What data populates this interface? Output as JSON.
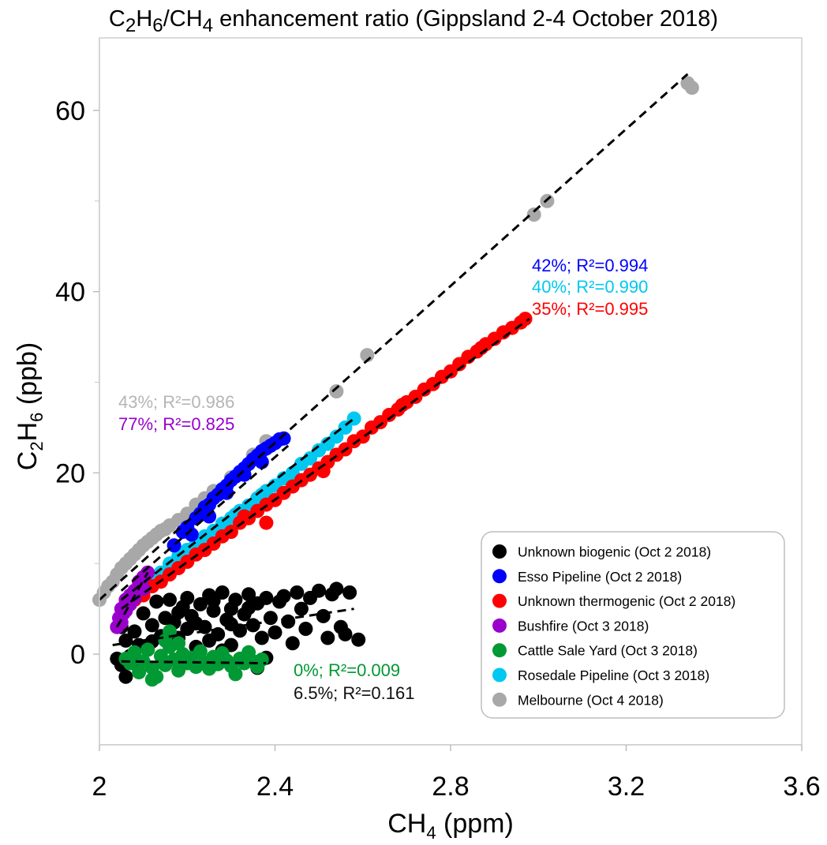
{
  "chart_data": {
    "type": "scatter",
    "title": {
      "pre": "C",
      "sub1": "2",
      "mid1": "H",
      "sub2": "6",
      "mid2": "/CH",
      "sub3": "4",
      "post": " enhancement ratio (Gippsland 2-4 October 2018)"
    },
    "xlabel": {
      "pre": "CH",
      "sub": "4",
      "post": " (ppm)"
    },
    "ylabel": {
      "pre": "C",
      "sub1": "2",
      "mid": "H",
      "sub2": "6",
      "post": " (ppb)"
    },
    "xlim": [
      2.0,
      3.6
    ],
    "ylim": [
      -10,
      68
    ],
    "xticks": [
      2.0,
      2.4,
      2.8,
      3.2,
      3.6
    ],
    "xtick_labels": [
      "2",
      "2.4",
      "2.8",
      "3.2",
      "3.6"
    ],
    "yticks": [
      0,
      20,
      40,
      60
    ],
    "ytick_labels": [
      "0",
      "20",
      "40",
      "60"
    ],
    "y_minor_ticks": [
      10,
      30,
      50
    ],
    "grid": false,
    "legend_position": "bottom-right",
    "series": [
      {
        "name": "Unknown biogenic (Oct 2 2018)",
        "color": "#000000",
        "fit": {
          "x": [
            2.03,
            2.58
          ],
          "y": [
            1.0,
            5.0
          ]
        },
        "annotation": "6.5%; R²=0.161",
        "points": [
          [
            2.04,
            -0.5
          ],
          [
            2.05,
            -1.2
          ],
          [
            2.06,
            1.5
          ],
          [
            2.07,
            -0.2
          ],
          [
            2.05,
            3.0
          ],
          [
            2.08,
            2.5
          ],
          [
            2.09,
            1.0
          ],
          [
            2.06,
            -2.5
          ],
          [
            2.1,
            4.5
          ],
          [
            2.11,
            0.5
          ],
          [
            2.12,
            3.2
          ],
          [
            2.13,
            5.8
          ],
          [
            2.14,
            2.0
          ],
          [
            2.15,
            4.0
          ],
          [
            2.15,
            -1.0
          ],
          [
            2.16,
            6.0
          ],
          [
            2.17,
            3.5
          ],
          [
            2.18,
            1.8
          ],
          [
            2.19,
            5.2
          ],
          [
            2.2,
            2.8
          ],
          [
            2.2,
            6.2
          ],
          [
            2.21,
            4.2
          ],
          [
            2.22,
            0.8
          ],
          [
            2.23,
            5.5
          ],
          [
            2.24,
            3.0
          ],
          [
            2.25,
            6.5
          ],
          [
            2.25,
            1.5
          ],
          [
            2.26,
            4.8
          ],
          [
            2.27,
            2.2
          ],
          [
            2.28,
            6.8
          ],
          [
            2.29,
            3.8
          ],
          [
            2.3,
            5.0
          ],
          [
            2.3,
            1.0
          ],
          [
            2.31,
            6.0
          ],
          [
            2.32,
            2.6
          ],
          [
            2.33,
            4.4
          ],
          [
            2.34,
            6.6
          ],
          [
            2.35,
            3.2
          ],
          [
            2.36,
            5.6
          ],
          [
            2.36,
            -1.5
          ],
          [
            2.37,
            1.8
          ],
          [
            2.38,
            6.2
          ],
          [
            2.39,
            4.0
          ],
          [
            2.4,
            2.4
          ],
          [
            2.41,
            5.8
          ],
          [
            2.42,
            6.4
          ],
          [
            2.43,
            3.6
          ],
          [
            2.44,
            1.2
          ],
          [
            2.45,
            6.8
          ],
          [
            2.46,
            5.0
          ],
          [
            2.47,
            2.8
          ],
          [
            2.48,
            6.2
          ],
          [
            2.5,
            7.0
          ],
          [
            2.51,
            4.2
          ],
          [
            2.52,
            1.8
          ],
          [
            2.53,
            6.6
          ],
          [
            2.54,
            7.2
          ],
          [
            2.55,
            3.0
          ],
          [
            2.56,
            2.2
          ],
          [
            2.57,
            6.8
          ],
          [
            2.59,
            1.6
          ],
          [
            2.18,
            4.6
          ],
          [
            2.22,
            3.4
          ],
          [
            2.26,
            5.9
          ],
          [
            2.3,
            3.3
          ],
          [
            2.34,
            5.1
          ],
          [
            2.12,
            1.4
          ],
          [
            2.08,
            -0.6
          ],
          [
            2.28,
            0.4
          ],
          [
            2.38,
            -0.4
          ]
        ]
      },
      {
        "name": "Esso Pipeline (Oct 2 2018)",
        "color": "#0000ff",
        "fit": {
          "x": [
            2.05,
            2.43
          ],
          "y": [
            7.0,
            23.0
          ]
        },
        "annotation": "42%; R²=0.994",
        "points": [
          [
            2.17,
            12.0
          ],
          [
            2.19,
            13.5
          ],
          [
            2.2,
            14.0
          ],
          [
            2.22,
            15.0
          ],
          [
            2.23,
            15.5
          ],
          [
            2.24,
            16.2
          ],
          [
            2.25,
            16.5
          ],
          [
            2.26,
            17.2
          ],
          [
            2.27,
            17.6
          ],
          [
            2.28,
            18.2
          ],
          [
            2.29,
            18.6
          ],
          [
            2.3,
            19.2
          ],
          [
            2.31,
            19.6
          ],
          [
            2.32,
            20.1
          ],
          [
            2.33,
            20.5
          ],
          [
            2.34,
            21.0
          ],
          [
            2.35,
            21.5
          ],
          [
            2.36,
            21.9
          ],
          [
            2.37,
            22.4
          ],
          [
            2.38,
            22.7
          ],
          [
            2.39,
            23.0
          ],
          [
            2.4,
            23.3
          ],
          [
            2.41,
            23.7
          ],
          [
            2.42,
            23.8
          ],
          [
            2.21,
            13.2
          ],
          [
            2.25,
            15.2
          ],
          [
            2.29,
            17.8
          ],
          [
            2.33,
            19.8
          ],
          [
            2.37,
            21.2
          ]
        ]
      },
      {
        "name": "Unknown thermogenic (Oct 2 2018)",
        "color": "#ff0000",
        "fit": {
          "x": [
            2.05,
            2.98
          ],
          "y": [
            5.0,
            37.0
          ]
        },
        "annotation": "35%; R²=0.995",
        "points": [
          [
            2.06,
            5.2
          ],
          [
            2.08,
            6.0
          ],
          [
            2.1,
            6.5
          ],
          [
            2.12,
            7.5
          ],
          [
            2.14,
            8.0
          ],
          [
            2.16,
            8.8
          ],
          [
            2.18,
            9.5
          ],
          [
            2.2,
            10.2
          ],
          [
            2.22,
            11.0
          ],
          [
            2.24,
            11.5
          ],
          [
            2.26,
            12.2
          ],
          [
            2.28,
            13.0
          ],
          [
            2.3,
            13.5
          ],
          [
            2.32,
            14.5
          ],
          [
            2.34,
            15.0
          ],
          [
            2.36,
            15.8
          ],
          [
            2.38,
            16.5
          ],
          [
            2.38,
            14.5
          ],
          [
            2.4,
            17.0
          ],
          [
            2.42,
            17.8
          ],
          [
            2.44,
            18.5
          ],
          [
            2.46,
            19.2
          ],
          [
            2.48,
            19.8
          ],
          [
            2.5,
            20.5
          ],
          [
            2.52,
            21.2
          ],
          [
            2.54,
            22.0
          ],
          [
            2.56,
            22.6
          ],
          [
            2.58,
            23.5
          ],
          [
            2.6,
            24.0
          ],
          [
            2.62,
            25.0
          ],
          [
            2.64,
            25.6
          ],
          [
            2.66,
            26.4
          ],
          [
            2.68,
            27.0
          ],
          [
            2.7,
            27.8
          ],
          [
            2.72,
            28.4
          ],
          [
            2.74,
            29.2
          ],
          [
            2.76,
            29.8
          ],
          [
            2.78,
            30.6
          ],
          [
            2.8,
            31.2
          ],
          [
            2.82,
            32.0
          ],
          [
            2.84,
            32.8
          ],
          [
            2.86,
            33.4
          ],
          [
            2.88,
            34.2
          ],
          [
            2.9,
            34.8
          ],
          [
            2.92,
            35.5
          ],
          [
            2.94,
            36.0
          ],
          [
            2.96,
            36.6
          ],
          [
            2.97,
            37.0
          ],
          [
            2.33,
            15.2
          ],
          [
            2.51,
            20.2
          ],
          [
            2.69,
            27.5
          ],
          [
            2.87,
            33.8
          ]
        ]
      },
      {
        "name": "Bushfire (Oct 3 2018)",
        "color": "#9900cc",
        "fit": {
          "x": [
            2.04,
            2.11
          ],
          "y": [
            3.0,
            9.0
          ]
        },
        "annotation": "77%; R²=0.825",
        "points": [
          [
            2.04,
            3.0
          ],
          [
            2.045,
            4.0
          ],
          [
            2.05,
            3.5
          ],
          [
            2.05,
            5.0
          ],
          [
            2.055,
            4.5
          ],
          [
            2.06,
            6.0
          ],
          [
            2.06,
            4.8
          ],
          [
            2.07,
            6.5
          ],
          [
            2.07,
            5.5
          ],
          [
            2.08,
            7.0
          ],
          [
            2.08,
            6.2
          ],
          [
            2.09,
            7.5
          ],
          [
            2.09,
            8.0
          ],
          [
            2.1,
            8.5
          ],
          [
            2.1,
            7.2
          ],
          [
            2.11,
            9.0
          ]
        ]
      },
      {
        "name": "Cattle Sale Yard (Oct 3 2018)",
        "color": "#009933",
        "fit": {
          "x": [
            2.05,
            2.38
          ],
          "y": [
            -0.8,
            -1.0
          ]
        },
        "annotation": "0%; R²=0.009",
        "points": [
          [
            2.06,
            -0.5
          ],
          [
            2.07,
            -1.0
          ],
          [
            2.08,
            0.2
          ],
          [
            2.09,
            -2.0
          ],
          [
            2.1,
            -0.8
          ],
          [
            2.11,
            0.5
          ],
          [
            2.12,
            -1.5
          ],
          [
            2.13,
            -2.5
          ],
          [
            2.14,
            -0.2
          ],
          [
            2.15,
            -1.2
          ],
          [
            2.16,
            0.8
          ],
          [
            2.17,
            -0.6
          ],
          [
            2.18,
            -1.8
          ],
          [
            2.19,
            0.0
          ],
          [
            2.2,
            -1.0
          ],
          [
            2.21,
            -0.4
          ],
          [
            2.22,
            -1.4
          ],
          [
            2.23,
            0.3
          ],
          [
            2.24,
            -0.9
          ],
          [
            2.25,
            -1.6
          ],
          [
            2.26,
            -0.3
          ],
          [
            2.27,
            -1.1
          ],
          [
            2.28,
            0.1
          ],
          [
            2.29,
            -0.7
          ],
          [
            2.3,
            -1.3
          ],
          [
            2.31,
            -2.2
          ],
          [
            2.32,
            -0.5
          ],
          [
            2.33,
            -1.0
          ],
          [
            2.34,
            0.2
          ],
          [
            2.35,
            -0.8
          ],
          [
            2.36,
            -1.4
          ],
          [
            2.37,
            -0.6
          ],
          [
            2.16,
            2.5
          ],
          [
            2.15,
            1.5
          ],
          [
            2.18,
            1.2
          ],
          [
            2.12,
            -2.8
          ]
        ]
      },
      {
        "name": "Rosedale Pipeline (Oct 3 2018)",
        "color": "#00c8f0",
        "fit": {
          "x": [
            2.05,
            2.58
          ],
          "y": [
            6.0,
            26.0
          ]
        },
        "annotation": "40%; R²=0.990",
        "points": [
          [
            2.12,
            8.0
          ],
          [
            2.14,
            9.0
          ],
          [
            2.16,
            10.0
          ],
          [
            2.18,
            10.8
          ],
          [
            2.2,
            11.5
          ],
          [
            2.22,
            12.2
          ],
          [
            2.24,
            13.0
          ],
          [
            2.26,
            13.6
          ],
          [
            2.28,
            14.4
          ],
          [
            2.3,
            15.0
          ],
          [
            2.32,
            15.8
          ],
          [
            2.34,
            16.4
          ],
          [
            2.36,
            17.2
          ],
          [
            2.38,
            18.0
          ],
          [
            2.4,
            18.6
          ],
          [
            2.42,
            19.4
          ],
          [
            2.44,
            20.0
          ],
          [
            2.46,
            21.0
          ],
          [
            2.48,
            21.6
          ],
          [
            2.5,
            22.5
          ],
          [
            2.52,
            23.2
          ],
          [
            2.54,
            24.0
          ],
          [
            2.56,
            25.0
          ],
          [
            2.58,
            26.0
          ],
          [
            2.25,
            12.8
          ],
          [
            2.31,
            15.4
          ],
          [
            2.37,
            17.6
          ]
        ]
      },
      {
        "name": "Melbourne (Oct 4 2018)",
        "color": "#a8a8a8",
        "fit": {
          "x": [
            2.0,
            3.34
          ],
          "y": [
            6.0,
            64.0
          ]
        },
        "annotation": "43%; R²=0.986",
        "points": [
          [
            2.0,
            6.0
          ],
          [
            2.01,
            6.8
          ],
          [
            2.02,
            7.5
          ],
          [
            2.03,
            8.0
          ],
          [
            2.04,
            8.8
          ],
          [
            2.05,
            9.5
          ],
          [
            2.06,
            10.0
          ],
          [
            2.07,
            10.5
          ],
          [
            2.08,
            11.0
          ],
          [
            2.09,
            11.5
          ],
          [
            2.1,
            12.0
          ],
          [
            2.11,
            12.4
          ],
          [
            2.12,
            12.8
          ],
          [
            2.13,
            13.2
          ],
          [
            2.14,
            13.6
          ],
          [
            2.15,
            13.8
          ],
          [
            2.16,
            14.2
          ],
          [
            2.18,
            14.8
          ],
          [
            2.2,
            15.5
          ],
          [
            2.22,
            16.5
          ],
          [
            2.24,
            17.2
          ],
          [
            2.26,
            18.0
          ],
          [
            2.3,
            19.5
          ],
          [
            2.35,
            22.0
          ],
          [
            2.38,
            23.5
          ],
          [
            2.54,
            29.0
          ],
          [
            2.61,
            33.0
          ],
          [
            2.99,
            48.5
          ],
          [
            3.02,
            50.0
          ],
          [
            3.34,
            63.0
          ],
          [
            3.35,
            62.5
          ]
        ]
      }
    ]
  }
}
